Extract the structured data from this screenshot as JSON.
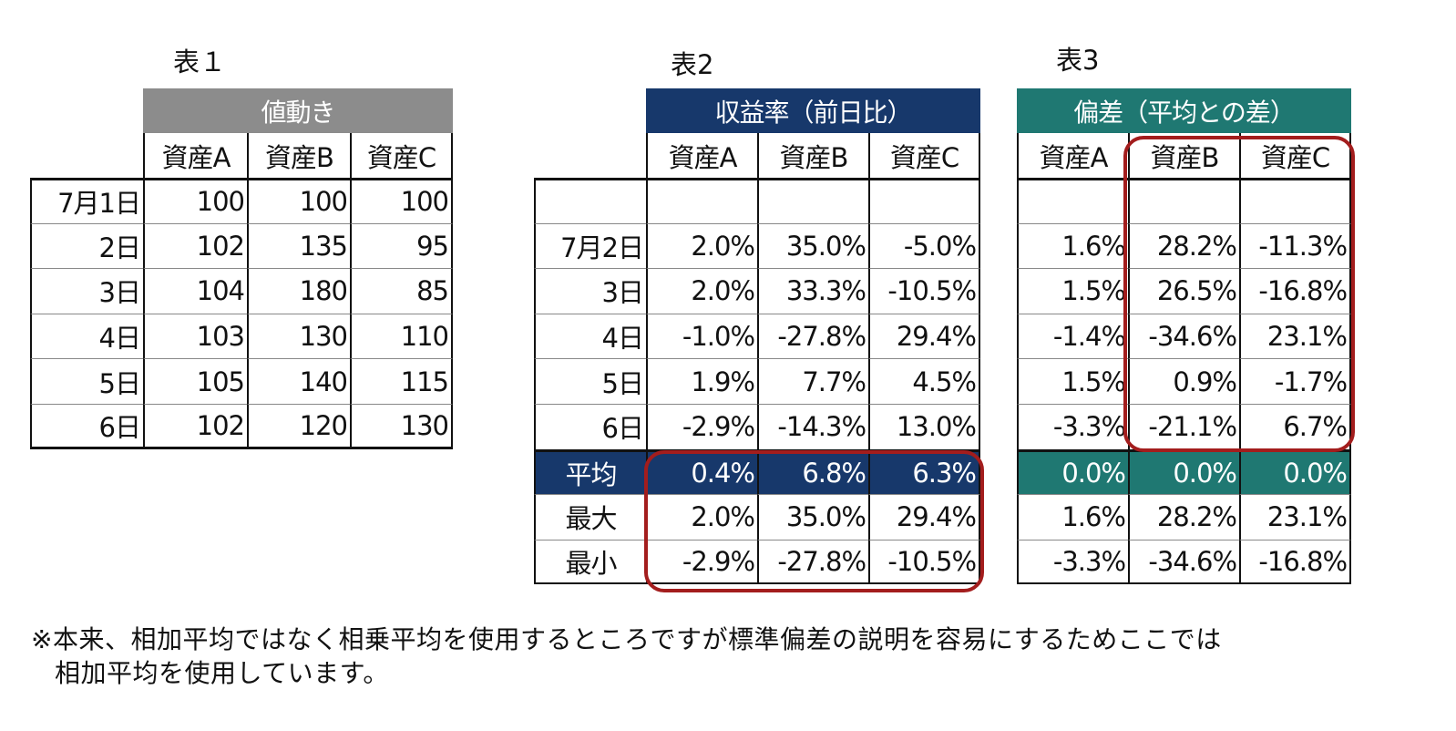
{
  "table1": {
    "caption": "表１",
    "group_header": "値動き",
    "columns": [
      "資産A",
      "資産B",
      "資産C"
    ],
    "rows": [
      {
        "label": "7月1日",
        "values": [
          "100",
          "100",
          "100"
        ]
      },
      {
        "label": "2日",
        "values": [
          "102",
          "135",
          "95"
        ]
      },
      {
        "label": "3日",
        "values": [
          "104",
          "180",
          "85"
        ]
      },
      {
        "label": "4日",
        "values": [
          "103",
          "130",
          "110"
        ]
      },
      {
        "label": "5日",
        "values": [
          "105",
          "140",
          "115"
        ]
      },
      {
        "label": "6日",
        "values": [
          "102",
          "120",
          "130"
        ]
      }
    ]
  },
  "table2": {
    "caption": "表2",
    "group_header": "収益率（前日比）",
    "columns": [
      "資産A",
      "資産B",
      "資産C"
    ],
    "rows": [
      {
        "label": "",
        "values": [
          "",
          "",
          ""
        ]
      },
      {
        "label": "7月2日",
        "values": [
          "2.0%",
          "35.0%",
          "-5.0%"
        ]
      },
      {
        "label": "3日",
        "values": [
          "2.0%",
          "33.3%",
          "-10.5%"
        ]
      },
      {
        "label": "4日",
        "values": [
          "-1.0%",
          "-27.8%",
          "29.4%"
        ]
      },
      {
        "label": "5日",
        "values": [
          "1.9%",
          "7.7%",
          "4.5%"
        ]
      },
      {
        "label": "6日",
        "values": [
          "-2.9%",
          "-14.3%",
          "13.0%"
        ]
      }
    ],
    "stats": [
      {
        "label": "平均",
        "values": [
          "0.4%",
          "6.8%",
          "6.3%"
        ]
      },
      {
        "label": "最大",
        "values": [
          "2.0%",
          "35.0%",
          "29.4%"
        ]
      },
      {
        "label": "最小",
        "values": [
          "-2.9%",
          "-27.8%",
          "-10.5%"
        ]
      }
    ]
  },
  "table3": {
    "caption": "表3",
    "group_header": "偏差（平均との差）",
    "columns": [
      "資産A",
      "資産B",
      "資産C"
    ],
    "rows": [
      {
        "values": [
          "",
          "",
          ""
        ]
      },
      {
        "values": [
          "1.6%",
          "28.2%",
          "-11.3%"
        ]
      },
      {
        "values": [
          "1.5%",
          "26.5%",
          "-16.8%"
        ]
      },
      {
        "values": [
          "-1.4%",
          "-34.6%",
          "23.1%"
        ]
      },
      {
        "values": [
          "1.5%",
          "0.9%",
          "-1.7%"
        ]
      },
      {
        "values": [
          "-3.3%",
          "-21.1%",
          "6.7%"
        ]
      }
    ],
    "stats": [
      {
        "values": [
          "0.0%",
          "0.0%",
          "0.0%"
        ]
      },
      {
        "values": [
          "1.6%",
          "28.2%",
          "23.1%"
        ]
      },
      {
        "values": [
          "-3.3%",
          "-34.6%",
          "-16.8%"
        ]
      }
    ]
  },
  "footnote": {
    "line1": "※本来、相加平均ではなく相乗平均を使用するところですが標準偏差の説明を容易にするためここでは",
    "line2": "相加平均を使用しています。"
  },
  "colors": {
    "table1_header": "#8c8c8c",
    "table2_header": "#17386b",
    "table3_header": "#1f7872",
    "highlight": "#a31d1d"
  }
}
